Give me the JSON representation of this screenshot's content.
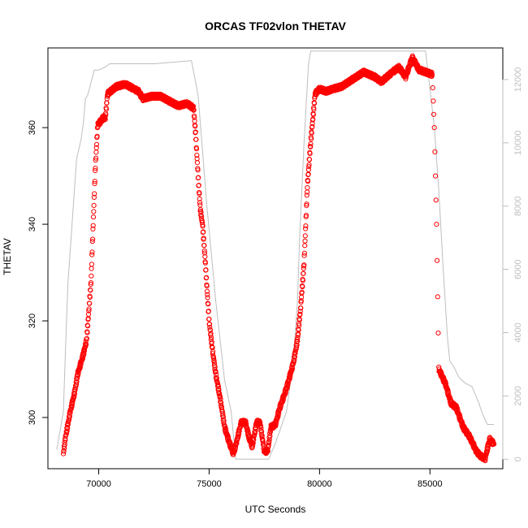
{
  "chart_data": {
    "type": "scatter",
    "title": "ORCAS TF02vlon THETAV",
    "xlabel": "UTC Seconds",
    "ylabel": "THETAV",
    "xlim": [
      67700,
      88300
    ],
    "ylim": [
      289.4,
      376.5
    ],
    "y2lim": [
      -300,
      13000
    ],
    "x_ticks": [
      70000,
      75000,
      80000,
      85000
    ],
    "y_ticks": [
      300,
      320,
      340,
      360
    ],
    "y2_ticks": [
      0,
      2000,
      4000,
      6000,
      8000,
      10000,
      12000
    ],
    "x_tick_labels": [
      "70000",
      "75000",
      "80000",
      "85000"
    ],
    "y_tick_labels": [
      "300",
      "320",
      "340",
      "360"
    ],
    "y2_tick_labels": [
      "0",
      "2000",
      "4000",
      "6000",
      "8000",
      "10000",
      "12000"
    ],
    "grid": false,
    "colors": {
      "points": "#ff0000",
      "altitude_line": "#bebebe",
      "axis": "#000000",
      "right_axis": "#bebebe"
    },
    "series": [
      {
        "kind": "points",
        "axis": "left",
        "anchors": [
          [
            68400,
            292.5
          ],
          [
            68500,
            296
          ],
          [
            68700,
            301
          ],
          [
            68900,
            305
          ],
          [
            69050,
            309
          ],
          [
            69300,
            313
          ],
          [
            69450,
            316
          ],
          [
            69550,
            322
          ],
          [
            69650,
            328
          ],
          [
            69750,
            340
          ],
          [
            69850,
            352
          ],
          [
            69950,
            360.5
          ],
          [
            70200,
            362
          ],
          [
            70300,
            362
          ],
          [
            70400,
            367
          ],
          [
            70800,
            368.5
          ],
          [
            71200,
            369
          ],
          [
            71600,
            368
          ],
          [
            71800,
            367.5
          ],
          [
            72000,
            366
          ],
          [
            72400,
            366.5
          ],
          [
            72800,
            366.5
          ],
          [
            73200,
            365.5
          ],
          [
            73600,
            364.5
          ],
          [
            74000,
            365
          ],
          [
            74300,
            364
          ],
          [
            74400,
            358
          ],
          [
            74500,
            350
          ],
          [
            74600,
            343
          ],
          [
            74700,
            340
          ],
          [
            74800,
            334
          ],
          [
            74900,
            327
          ],
          [
            75000,
            320
          ],
          [
            75150,
            314
          ],
          [
            75300,
            309
          ],
          [
            75500,
            304
          ],
          [
            75700,
            298
          ],
          [
            75900,
            295
          ],
          [
            76100,
            292.5
          ],
          [
            76250,
            295
          ],
          [
            76450,
            299
          ],
          [
            76650,
            299
          ],
          [
            76800,
            296
          ],
          [
            76950,
            294
          ],
          [
            77150,
            299
          ],
          [
            77300,
            299
          ],
          [
            77500,
            293
          ],
          [
            77650,
            293
          ],
          [
            77800,
            298
          ],
          [
            78000,
            298.5
          ],
          [
            78200,
            302
          ],
          [
            78500,
            306
          ],
          [
            78800,
            311
          ],
          [
            79000,
            316
          ],
          [
            79150,
            323
          ],
          [
            79300,
            332
          ],
          [
            79450,
            348
          ],
          [
            79600,
            357
          ],
          [
            79700,
            362
          ],
          [
            79800,
            367
          ],
          [
            80000,
            368
          ],
          [
            80300,
            367.5
          ],
          [
            80600,
            368
          ],
          [
            81000,
            368.5
          ],
          [
            81500,
            370
          ],
          [
            82000,
            371.5
          ],
          [
            82500,
            370.5
          ],
          [
            82800,
            369.5
          ],
          [
            83300,
            371.5
          ],
          [
            83600,
            372.5
          ],
          [
            83900,
            370.5
          ],
          [
            84200,
            374.5
          ],
          [
            84500,
            372
          ],
          [
            84800,
            371.5
          ],
          [
            85100,
            371
          ],
          [
            85200,
            360
          ],
          [
            85300,
            340
          ],
          [
            85400,
            310
          ],
          [
            85700,
            307
          ],
          [
            85950,
            303
          ],
          [
            86200,
            302
          ],
          [
            86500,
            298
          ],
          [
            86800,
            296
          ],
          [
            87100,
            293
          ],
          [
            87300,
            292
          ],
          [
            87500,
            291.5
          ],
          [
            87700,
            295.5
          ],
          [
            87800,
            295
          ],
          [
            87900,
            294.5
          ]
        ]
      },
      {
        "kind": "line",
        "axis": "right",
        "x": [
          68100,
          68400,
          68500,
          68600,
          68800,
          69000,
          69200,
          69300,
          69400,
          69500,
          69800,
          70000,
          70300,
          70500,
          72500,
          74200,
          74500,
          74900,
          75300,
          75700,
          76000,
          76200,
          76800,
          77300,
          77700,
          78000,
          78500,
          78800,
          79000,
          79100,
          79300,
          79500,
          79600,
          80000,
          82000,
          84800,
          85200,
          85400,
          85600,
          85800,
          85900,
          86100,
          86300,
          86600,
          86900,
          87200,
          87400,
          87600,
          87900
        ],
        "values": [
          300,
          1500,
          3500,
          5500,
          7500,
          9500,
          10100,
          10600,
          11400,
          11500,
          12300,
          12300,
          12400,
          12500,
          12500,
          12600,
          11500,
          8000,
          5000,
          2500,
          1500,
          0,
          0,
          0,
          0,
          500,
          1500,
          3000,
          5000,
          7000,
          10000,
          12500,
          12900,
          12900,
          12900,
          12900,
          10500,
          8500,
          6000,
          3800,
          3100,
          2900,
          2600,
          2400,
          2300,
          1800,
          1400,
          1100,
          1100
        ]
      }
    ]
  }
}
